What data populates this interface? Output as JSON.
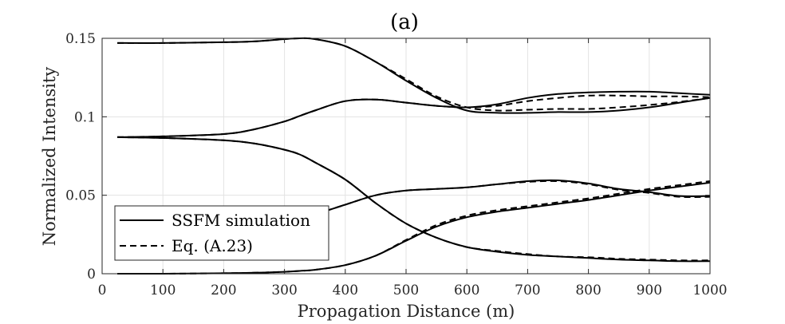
{
  "chart_data": {
    "type": "line",
    "title": "(a)",
    "xlabel": "Propagation Distance (m)",
    "ylabel": "Normalized Intensity",
    "xlim": [
      0,
      1000
    ],
    "ylim": [
      0,
      0.15
    ],
    "xticks": [
      "0",
      "100",
      "200",
      "300",
      "400",
      "500",
      "600",
      "700",
      "800",
      "900",
      "1000"
    ],
    "yticks": [
      "0",
      "0.05",
      "0.1",
      "0.15"
    ],
    "xtick_values": [
      0,
      100,
      200,
      300,
      400,
      500,
      600,
      700,
      800,
      900,
      1000
    ],
    "ytick_values": [
      0,
      0.05,
      0.1,
      0.15
    ],
    "grid": true,
    "legend_position": "bottom-left",
    "legend": [
      {
        "label": "SSFM simulation",
        "style": "solid"
      },
      {
        "label": "Eq. (A.23)",
        "style": "dashed"
      }
    ],
    "x": [
      25,
      100,
      200,
      250,
      300,
      325,
      350,
      400,
      450,
      500,
      550,
      600,
      650,
      700,
      750,
      800,
      850,
      900,
      950,
      1000
    ],
    "series": [
      {
        "style": "solid",
        "values": [
          0.147,
          0.147,
          0.1475,
          0.148,
          0.1495,
          0.15,
          0.1495,
          0.145,
          0.135,
          0.123,
          0.112,
          0.104,
          0.1025,
          0.1025,
          0.103,
          0.103,
          0.104,
          0.106,
          0.109,
          0.112
        ]
      },
      {
        "style": "dashed",
        "values": [
          0.147,
          0.147,
          0.1475,
          0.148,
          0.1495,
          0.15,
          0.1495,
          0.145,
          0.135,
          0.124,
          0.113,
          0.106,
          0.104,
          0.1045,
          0.105,
          0.105,
          0.106,
          0.1075,
          0.1095,
          0.112
        ]
      },
      {
        "style": "solid",
        "values": [
          0.087,
          0.0875,
          0.089,
          0.092,
          0.097,
          0.1005,
          0.104,
          0.11,
          0.111,
          0.109,
          0.107,
          0.106,
          0.108,
          0.112,
          0.1145,
          0.1155,
          0.116,
          0.116,
          0.115,
          0.114
        ]
      },
      {
        "style": "dashed",
        "values": [
          0.087,
          0.0875,
          0.089,
          0.092,
          0.097,
          0.1005,
          0.104,
          0.11,
          0.111,
          0.109,
          0.107,
          0.106,
          0.107,
          0.11,
          0.112,
          0.1135,
          0.1135,
          0.113,
          0.113,
          0.1125
        ]
      },
      {
        "style": "solid",
        "values": [
          0.087,
          0.0865,
          0.085,
          0.083,
          0.079,
          0.076,
          0.071,
          0.06,
          0.045,
          0.032,
          0.023,
          0.017,
          0.014,
          0.012,
          0.011,
          0.01,
          0.009,
          0.0085,
          0.008,
          0.008
        ]
      },
      {
        "style": "dashed",
        "values": [
          0.087,
          0.0865,
          0.085,
          0.083,
          0.079,
          0.076,
          0.071,
          0.06,
          0.045,
          0.032,
          0.023,
          0.017,
          0.0145,
          0.0125,
          0.011,
          0.0105,
          0.0095,
          0.009,
          0.0085,
          0.0085
        ]
      },
      {
        "style": "solid",
        "values": [
          0.0,
          0.0,
          0.0003,
          0.0006,
          0.0012,
          0.0018,
          0.0025,
          0.0055,
          0.0115,
          0.021,
          0.03,
          0.036,
          0.0395,
          0.042,
          0.0445,
          0.047,
          0.05,
          0.053,
          0.0555,
          0.058
        ]
      },
      {
        "style": "dashed",
        "values": [
          0.0,
          0.0,
          0.0003,
          0.0006,
          0.0012,
          0.0018,
          0.0025,
          0.0055,
          0.0115,
          0.0215,
          0.031,
          0.037,
          0.0405,
          0.043,
          0.0455,
          0.048,
          0.051,
          0.054,
          0.0565,
          0.059
        ]
      },
      {
        "style": "solid",
        "values": [
          null,
          null,
          null,
          null,
          0.036,
          0.037,
          0.038,
          0.044,
          0.05,
          0.053,
          0.054,
          0.055,
          0.057,
          0.059,
          0.0595,
          0.0575,
          0.054,
          0.052,
          0.0495,
          0.0495
        ]
      },
      {
        "style": "dashed",
        "values": [
          null,
          null,
          null,
          null,
          0.036,
          0.037,
          0.038,
          0.044,
          0.05,
          0.053,
          0.054,
          0.055,
          0.057,
          0.0585,
          0.059,
          0.057,
          0.0535,
          0.0515,
          0.049,
          0.049
        ]
      }
    ]
  }
}
